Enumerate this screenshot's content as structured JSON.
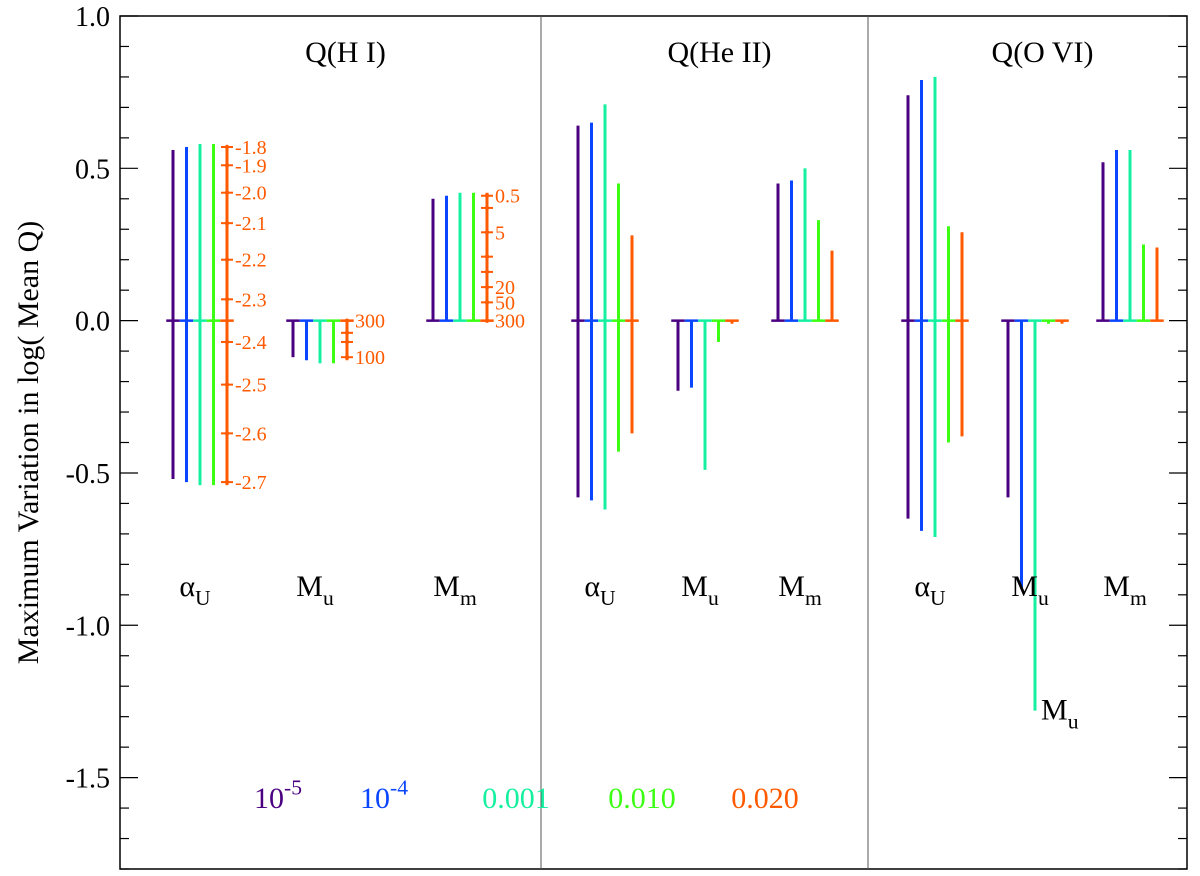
{
  "chart_data": {
    "type": "range_bar",
    "ylabel": "Maximum Variation in log( Mean Q)",
    "ylim": [
      -1.8,
      1.0
    ],
    "yticks": [
      {
        "value": 1.0,
        "label": "1.0"
      },
      {
        "value": 0.5,
        "label": "0.5"
      },
      {
        "value": 0.0,
        "label": "0.0"
      },
      {
        "value": -0.5,
        "label": "-0.5"
      },
      {
        "value": -1.0,
        "label": "-1.0"
      },
      {
        "value": -1.5,
        "label": "-1.5"
      }
    ],
    "colors": [
      "#4b0082",
      "#0a45ff",
      "#14f0a0",
      "#3cff14",
      "#ff5a00"
    ],
    "legend": [
      {
        "base": "10",
        "sup": "-5",
        "color": "#4b0082"
      },
      {
        "base": "10",
        "sup": "-4",
        "color": "#0a45ff"
      },
      {
        "base": "0.001",
        "sup": "",
        "color": "#14f0a0"
      },
      {
        "base": "0.010",
        "sup": "",
        "color": "#3cff14"
      },
      {
        "base": "0.020",
        "sup": "",
        "color": "#ff5a00"
      }
    ],
    "panels": [
      {
        "title": "Q(H I)",
        "groups": [
          {
            "label": "α",
            "sub": "U",
            "ranges": [
              [
                -0.52,
                0.56
              ],
              [
                -0.53,
                0.57
              ],
              [
                -0.54,
                0.58
              ],
              [
                -0.54,
                0.58
              ],
              [
                -0.54,
                0.57
              ]
            ]
          },
          {
            "label": "M",
            "sub": "u",
            "ranges": [
              [
                -0.12,
                0.0
              ],
              [
                -0.13,
                0.0
              ],
              [
                -0.14,
                0.0
              ],
              [
                -0.14,
                0.0
              ],
              [
                -0.13,
                0.0
              ]
            ]
          },
          {
            "label": "M",
            "sub": "m",
            "ranges": [
              [
                0.0,
                0.4
              ],
              [
                0.0,
                0.41
              ],
              [
                0.0,
                0.42
              ],
              [
                0.0,
                0.42
              ],
              [
                0.0,
                0.42
              ]
            ]
          }
        ]
      },
      {
        "title": "Q(He II)",
        "groups": [
          {
            "label": "α",
            "sub": "U",
            "ranges": [
              [
                -0.58,
                0.64
              ],
              [
                -0.59,
                0.65
              ],
              [
                -0.62,
                0.71
              ],
              [
                -0.43,
                0.45
              ],
              [
                -0.37,
                0.28
              ]
            ]
          },
          {
            "label": "M",
            "sub": "u",
            "ranges": [
              [
                -0.23,
                0.0
              ],
              [
                -0.22,
                0.0
              ],
              [
                -0.49,
                0.0
              ],
              [
                -0.07,
                0.0
              ],
              [
                -0.01,
                0.0
              ]
            ]
          },
          {
            "label": "M",
            "sub": "m",
            "ranges": [
              [
                0.0,
                0.45
              ],
              [
                0.0,
                0.46
              ],
              [
                0.0,
                0.5
              ],
              [
                0.0,
                0.33
              ],
              [
                0.0,
                0.23
              ]
            ]
          }
        ]
      },
      {
        "title": "Q(O VI)",
        "groups": [
          {
            "label": "α",
            "sub": "U",
            "ranges": [
              [
                -0.65,
                0.74
              ],
              [
                -0.69,
                0.79
              ],
              [
                -0.71,
                0.8
              ],
              [
                -0.4,
                0.31
              ],
              [
                -0.38,
                0.29
              ]
            ]
          },
          {
            "label": "M",
            "sub": "u",
            "ranges": [
              [
                -0.58,
                0.0
              ],
              [
                -0.88,
                0.0
              ],
              [
                -1.28,
                0.0
              ],
              [
                -0.01,
                0.0
              ],
              [
                -0.01,
                0.0
              ]
            ]
          },
          {
            "label": "M",
            "sub": "m",
            "ranges": [
              [
                0.0,
                0.52
              ],
              [
                0.0,
                0.56
              ],
              [
                0.0,
                0.56
              ],
              [
                0.0,
                0.25
              ],
              [
                0.0,
                0.24
              ]
            ]
          }
        ]
      }
    ],
    "annotations": [
      {
        "panel": 0,
        "group": 0,
        "markers": [
          {
            "value": 0.57,
            "label": "-1.8"
          },
          {
            "value": 0.51,
            "label": "-1.9"
          },
          {
            "value": 0.42,
            "label": "-2.0"
          },
          {
            "value": 0.32,
            "label": "-2.1"
          },
          {
            "value": 0.2,
            "label": "-2.2"
          },
          {
            "value": 0.07,
            "label": "-2.3"
          },
          {
            "value": -0.07,
            "label": "-2.4"
          },
          {
            "value": -0.21,
            "label": "-2.5"
          },
          {
            "value": -0.37,
            "label": "-2.6"
          },
          {
            "value": -0.53,
            "label": "-2.7"
          }
        ]
      },
      {
        "panel": 0,
        "group": 1,
        "markers": [
          {
            "value": 0.0,
            "label": "300"
          },
          {
            "value": -0.04,
            "label": ""
          },
          {
            "value": -0.07,
            "label": ""
          },
          {
            "value": -0.12,
            "label": "100"
          }
        ]
      },
      {
        "panel": 0,
        "group": 2,
        "markers": [
          {
            "value": 0.41,
            "label": "0.5"
          },
          {
            "value": 0.37,
            "label": ""
          },
          {
            "value": 0.29,
            "label": "5"
          },
          {
            "value": 0.21,
            "label": ""
          },
          {
            "value": 0.16,
            "label": ""
          },
          {
            "value": 0.11,
            "label": "20"
          },
          {
            "value": 0.06,
            "label": "50"
          },
          {
            "value": 0.0,
            "label": "300"
          }
        ]
      }
    ],
    "extra_labels": [
      {
        "text": "M",
        "sub": "u",
        "panel": 2,
        "value": -1.27
      }
    ]
  }
}
